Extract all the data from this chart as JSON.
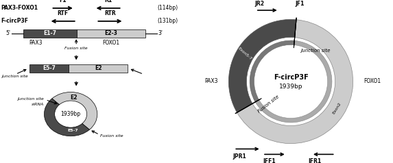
{
  "fig_width": 5.73,
  "fig_height": 2.38,
  "dpi": 100,
  "bg_color": "#ffffff",
  "dark_gray": "#4a4a4a",
  "medium_gray": "#777777",
  "light_gray": "#aaaaaa",
  "very_light_gray": "#cccccc",
  "text_color": "#000000",
  "left_labels": {
    "pax3_foxo1": "PAX3-FOXO1",
    "f_circp3f": "F-circP3F",
    "f1": "F1",
    "r1": "R1",
    "rtf": "RTF",
    "rtr": "RTR",
    "114bp": "(114bp)",
    "131bp": "(131bp)",
    "e17": "E1-7",
    "e23": "E2-3",
    "pax3": "PAX3",
    "foxo1": "FOXO1",
    "fusion_site": "Fusion site",
    "junction_site": "Junction site",
    "e57": "E5-7",
    "e2": "E2",
    "sirna": "siRNA",
    "1939bp": "1939bp",
    "five_prime": "5'",
    "three_prime": "3'"
  },
  "right_labels": {
    "jf1": "JF1",
    "jr2": "JR2",
    "jpr1": "JPR1",
    "jff1": "JFF1",
    "jfr1": "JFR1",
    "pax3": "PAX3",
    "foxo1": "FOXO1",
    "f_circp3f": "F-circP3F",
    "1939bp": "1939bp",
    "junction_site": "Junction site",
    "fusion_site": "Fusion site",
    "exon57": "Exon5-7",
    "exon2": "Exon2"
  }
}
